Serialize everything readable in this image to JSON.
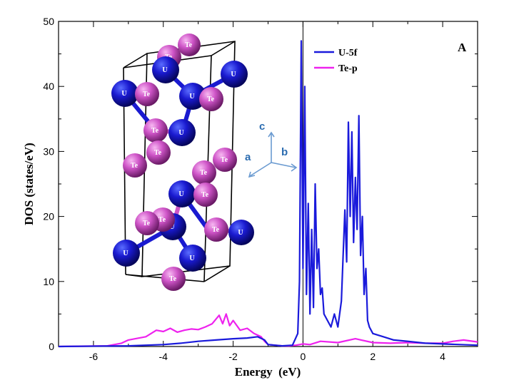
{
  "chart_data": {
    "type": "line",
    "title": "",
    "panel_label": "A",
    "xlabel": "Energy  (eV)",
    "ylabel": "DOS (states/eV)",
    "xlim": [
      -7,
      5
    ],
    "ylim": [
      0,
      50
    ],
    "x_ticks": [
      -6,
      -4,
      -2,
      0,
      2,
      4
    ],
    "y_ticks": [
      0,
      10,
      20,
      30,
      40,
      50
    ],
    "grid": false,
    "legend_position": "top-right",
    "series": [
      {
        "name": "U-5f",
        "color": "#1a1adb",
        "x": [
          -7.0,
          -5.0,
          -4.0,
          -3.5,
          -3.0,
          -2.5,
          -2.0,
          -1.6,
          -1.3,
          -1.1,
          -1.0,
          -0.6,
          -0.3,
          -0.15,
          -0.1,
          -0.05,
          0.0,
          0.05,
          0.1,
          0.15,
          0.2,
          0.25,
          0.3,
          0.35,
          0.4,
          0.45,
          0.5,
          0.55,
          0.6,
          0.7,
          0.8,
          0.9,
          1.0,
          1.1,
          1.2,
          1.25,
          1.3,
          1.35,
          1.4,
          1.45,
          1.5,
          1.55,
          1.6,
          1.65,
          1.7,
          1.75,
          1.8,
          1.85,
          1.9,
          2.0,
          2.3,
          2.6,
          3.0,
          3.5,
          4.0,
          4.5,
          5.0
        ],
        "y": [
          0.0,
          0.1,
          0.3,
          0.5,
          0.8,
          1.0,
          1.2,
          1.3,
          1.5,
          1.0,
          0.3,
          0.1,
          0.2,
          2.0,
          10.0,
          47.0,
          12.0,
          40.0,
          8.0,
          22.0,
          5.0,
          18.0,
          6.0,
          25.0,
          12.0,
          15.0,
          8.0,
          9.0,
          5.0,
          4.0,
          3.0,
          5.0,
          3.0,
          7.0,
          21.0,
          13.0,
          34.5,
          20.0,
          33.0,
          16.0,
          26.0,
          18.0,
          35.5,
          14.0,
          20.0,
          8.0,
          12.0,
          4.0,
          3.0,
          2.0,
          1.5,
          1.0,
          0.8,
          0.5,
          0.4,
          0.3,
          0.2
        ]
      },
      {
        "name": "Te-p",
        "color": "#ee22ee",
        "x": [
          -7.0,
          -5.6,
          -5.2,
          -5.0,
          -4.8,
          -4.5,
          -4.2,
          -4.0,
          -3.8,
          -3.6,
          -3.4,
          -3.2,
          -3.0,
          -2.8,
          -2.6,
          -2.4,
          -2.3,
          -2.2,
          -2.1,
          -2.0,
          -1.8,
          -1.6,
          -1.4,
          -1.2,
          -1.1,
          -1.0,
          -0.8,
          -0.6,
          -0.4,
          -0.2,
          0.0,
          0.2,
          0.5,
          1.0,
          1.5,
          2.0,
          2.5,
          3.0,
          3.5,
          4.0,
          4.3,
          4.6,
          5.0
        ],
        "y": [
          0.0,
          0.1,
          0.5,
          1.0,
          1.2,
          1.5,
          2.5,
          2.3,
          2.8,
          2.2,
          2.5,
          2.7,
          2.6,
          3.0,
          3.5,
          4.8,
          3.5,
          5.0,
          3.2,
          4.0,
          2.5,
          2.8,
          2.0,
          1.5,
          0.8,
          0.3,
          0.2,
          0.1,
          0.1,
          0.2,
          0.4,
          0.3,
          0.8,
          0.6,
          1.2,
          0.6,
          0.5,
          0.6,
          0.5,
          0.5,
          0.8,
          1.0,
          0.7
        ]
      }
    ]
  },
  "inset": {
    "axis_labels": {
      "c": "c",
      "a": "a",
      "b": "b"
    },
    "atoms": [
      {
        "el": "Te",
        "label": "Te",
        "color": "#c050c0"
      },
      {
        "el": "U",
        "label": "U",
        "color": "#1a1acc"
      }
    ]
  }
}
